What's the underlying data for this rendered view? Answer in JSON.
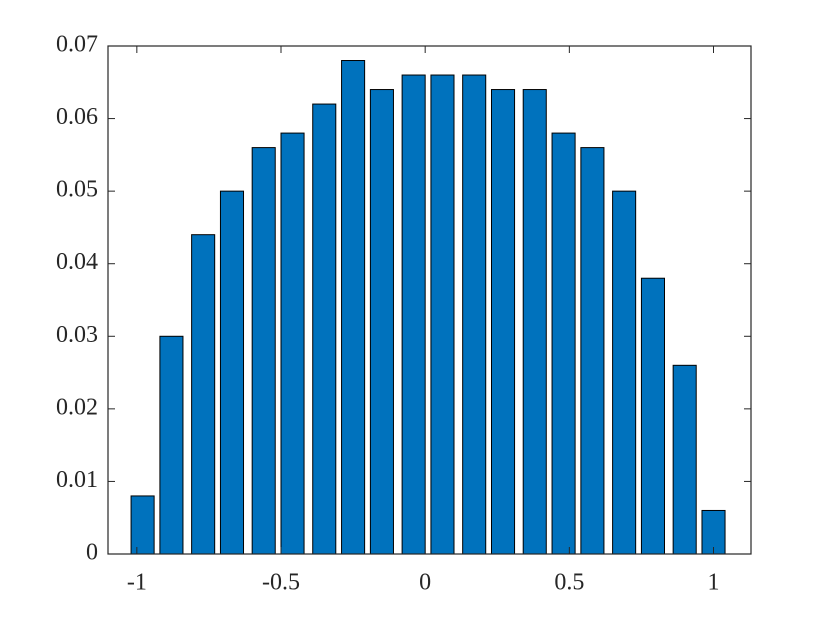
{
  "chart_data": {
    "type": "bar",
    "x": [
      -0.98,
      -0.88,
      -0.77,
      -0.67,
      -0.56,
      -0.46,
      -0.35,
      -0.25,
      -0.15,
      -0.04,
      0.06,
      0.17,
      0.27,
      0.38,
      0.48,
      0.58,
      0.69,
      0.79,
      0.9,
      1.0
    ],
    "values": [
      0.008,
      0.03,
      0.044,
      0.05,
      0.056,
      0.058,
      0.062,
      0.068,
      0.064,
      0.066,
      0.066,
      0.066,
      0.064,
      0.064,
      0.058,
      0.056,
      0.05,
      0.038,
      0.026,
      0.006
    ],
    "color": "#0072bd",
    "xlim": [
      -1.1,
      1.13
    ],
    "xticks": [
      -1,
      -0.5,
      0,
      0.5,
      1
    ],
    "ylim": [
      0,
      0.07
    ],
    "yticks": [
      0,
      0.01,
      0.02,
      0.03,
      0.04,
      0.05,
      0.06,
      0.07
    ]
  }
}
